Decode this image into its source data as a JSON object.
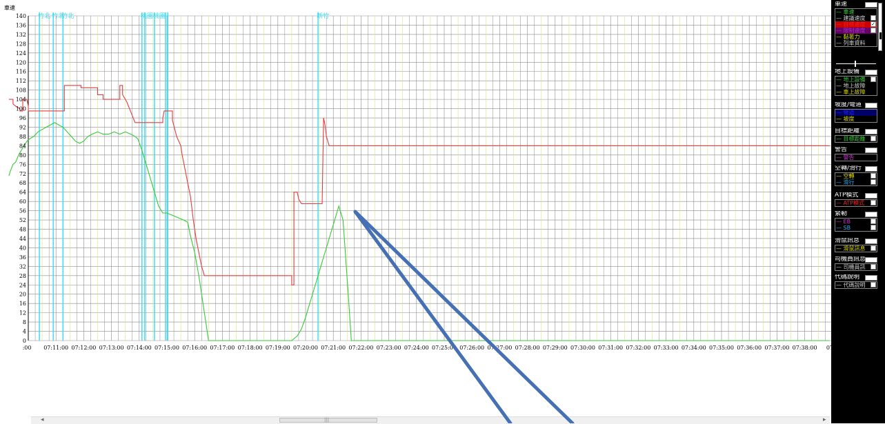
{
  "chart_data": {
    "type": "line",
    "ylabel": "車速",
    "y_ticks": [
      0,
      4,
      8,
      12,
      16,
      20,
      24,
      28,
      32,
      36,
      40,
      44,
      48,
      52,
      56,
      60,
      64,
      68,
      72,
      76,
      80,
      84,
      88,
      92,
      96,
      100,
      104,
      108,
      112,
      116,
      120,
      124,
      128,
      132,
      136,
      140
    ],
    "x_tick_labels": [
      ":00",
      "07:11:00",
      "07:12:00",
      "07:13:00",
      "07:14:00",
      "07:15:00",
      "07:16:00",
      "07:17:00",
      "07:18:00",
      "07:19:00",
      "07:20:00",
      "07:21:00",
      "07:22:00",
      "07:23:00",
      "07:24:00",
      "07:25:00",
      "07:26:00",
      "07:27:00",
      "07:28:00",
      "07:29:00",
      "07:30:00",
      "07:31:00",
      "07:32:00",
      "07:33:00",
      "07:34:00",
      "07:35:00",
      "07:36:00",
      "07:37:00",
      "07:38:00",
      "07:3"
    ],
    "station_markers": [
      {
        "label": "竹北",
        "t": 0.4
      },
      {
        "label": "竹北",
        "t": 0.9
      },
      {
        "label": "竹北",
        "t": 1.25
      },
      {
        "label": "桃園",
        "t": 4.1
      },
      {
        "label": "",
        "t": 4.2
      },
      {
        "label": "桃園",
        "t": 4.55
      },
      {
        "label": "",
        "t": 4.95
      },
      {
        "label": "",
        "t": 5.03
      },
      {
        "label": "新竹",
        "t": 10.45
      }
    ],
    "series": [
      {
        "name": "車速",
        "color": "#33cc33",
        "points": [
          [
            -0.7,
            71
          ],
          [
            -0.65,
            73
          ],
          [
            -0.55,
            76
          ],
          [
            -0.45,
            77
          ],
          [
            -0.35,
            80
          ],
          [
            -0.25,
            82
          ],
          [
            -0.15,
            84
          ],
          [
            -0.05,
            86
          ],
          [
            0.05,
            87
          ],
          [
            0.2,
            88
          ],
          [
            0.35,
            90
          ],
          [
            0.5,
            91
          ],
          [
            0.65,
            92
          ],
          [
            0.8,
            93
          ],
          [
            0.95,
            94
          ],
          [
            1.1,
            93
          ],
          [
            1.25,
            92
          ],
          [
            1.4,
            90
          ],
          [
            1.55,
            88
          ],
          [
            1.7,
            86
          ],
          [
            1.85,
            85
          ],
          [
            2.0,
            86
          ],
          [
            2.15,
            88
          ],
          [
            2.3,
            89
          ],
          [
            2.5,
            90
          ],
          [
            2.7,
            89
          ],
          [
            2.9,
            89
          ],
          [
            3.1,
            90
          ],
          [
            3.3,
            89
          ],
          [
            3.5,
            90
          ],
          [
            3.7,
            89
          ],
          [
            3.85,
            88
          ],
          [
            3.95,
            87
          ],
          [
            4.1,
            82
          ],
          [
            4.25,
            76
          ],
          [
            4.4,
            70
          ],
          [
            4.55,
            64
          ],
          [
            4.7,
            58
          ],
          [
            4.85,
            55
          ],
          [
            5.0,
            55
          ],
          [
            5.2,
            54
          ],
          [
            5.4,
            53
          ],
          [
            5.6,
            52
          ],
          [
            5.75,
            51
          ],
          [
            5.85,
            45
          ],
          [
            6.0,
            38
          ],
          [
            6.15,
            28
          ],
          [
            6.3,
            16
          ],
          [
            6.4,
            8
          ],
          [
            6.5,
            0
          ],
          [
            7.0,
            0
          ],
          [
            8.0,
            0
          ],
          [
            9.0,
            0
          ],
          [
            9.5,
            0
          ],
          [
            9.7,
            2
          ],
          [
            9.85,
            5
          ],
          [
            10.0,
            10
          ],
          [
            10.15,
            16
          ],
          [
            10.3,
            22
          ],
          [
            10.45,
            28
          ],
          [
            10.6,
            34
          ],
          [
            10.75,
            40
          ],
          [
            10.9,
            46
          ],
          [
            11.05,
            52
          ],
          [
            11.2,
            58
          ],
          [
            11.35,
            52
          ],
          [
            11.45,
            35
          ],
          [
            11.55,
            18
          ],
          [
            11.65,
            0
          ],
          [
            12.0,
            0
          ],
          [
            14.0,
            0
          ],
          [
            16.0,
            0
          ],
          [
            18.0,
            0
          ],
          [
            20.0,
            0
          ],
          [
            22.0,
            0
          ],
          [
            24.0,
            0
          ],
          [
            26.0,
            0
          ],
          [
            28.0,
            0
          ],
          [
            28.9,
            0
          ]
        ]
      },
      {
        "name": "目標速度",
        "color": "#e83a3a",
        "points": [
          [
            -0.7,
            104
          ],
          [
            -0.55,
            104
          ],
          [
            -0.55,
            102
          ],
          [
            -0.45,
            101
          ],
          [
            -0.3,
            100
          ],
          [
            -0.3,
            99
          ],
          [
            -0.2,
            99
          ],
          [
            -0.2,
            104
          ],
          [
            -0.05,
            104
          ],
          [
            0.0,
            101
          ],
          [
            0.0,
            99
          ],
          [
            1.2,
            99
          ],
          [
            1.2,
            99
          ],
          [
            1.3,
            99
          ],
          [
            1.3,
            110
          ],
          [
            1.9,
            110
          ],
          [
            1.9,
            109
          ],
          [
            2.5,
            109
          ],
          [
            2.5,
            106
          ],
          [
            2.7,
            106
          ],
          [
            2.7,
            104
          ],
          [
            3.3,
            104
          ],
          [
            3.3,
            110
          ],
          [
            3.4,
            110
          ],
          [
            3.4,
            106
          ],
          [
            3.55,
            103
          ],
          [
            3.65,
            100
          ],
          [
            3.75,
            97
          ],
          [
            3.85,
            94
          ],
          [
            4.85,
            94
          ],
          [
            4.85,
            96
          ],
          [
            4.9,
            99
          ],
          [
            5.2,
            99
          ],
          [
            5.2,
            95
          ],
          [
            5.35,
            88
          ],
          [
            5.5,
            84
          ],
          [
            5.55,
            80
          ],
          [
            5.65,
            74
          ],
          [
            5.75,
            68
          ],
          [
            5.85,
            62
          ],
          [
            5.95,
            52
          ],
          [
            6.05,
            44
          ],
          [
            6.15,
            38
          ],
          [
            6.25,
            32
          ],
          [
            6.35,
            28
          ],
          [
            9.5,
            28
          ],
          [
            9.5,
            24
          ],
          [
            9.58,
            24
          ],
          [
            9.58,
            64
          ],
          [
            9.7,
            64
          ],
          [
            9.75,
            61
          ],
          [
            9.85,
            59
          ],
          [
            10.6,
            59
          ],
          [
            10.6,
            60
          ],
          [
            10.65,
            96
          ],
          [
            10.7,
            93
          ],
          [
            10.75,
            88
          ],
          [
            10.85,
            84
          ],
          [
            28.9,
            84
          ]
        ]
      }
    ]
  },
  "scrollbar": {
    "left_arrow": "◂",
    "right_arrow": "▸",
    "thumb_grip": "|||"
  },
  "panel": {
    "groups": [
      {
        "title": "車速",
        "items": [
          {
            "label": "車速",
            "color": "#33cc33"
          },
          {
            "label": "建議速度",
            "color": "#cccccc",
            "box": true
          },
          {
            "label": "目標速度",
            "color": "#ee2222",
            "box": true,
            "checked": true,
            "highlight": "#cc0000"
          },
          {
            "label": "限制速度",
            "color": "#aa33cc",
            "box": true,
            "highlight": "#660066"
          },
          {
            "label": "黏著力",
            "color": "#dddd00"
          },
          {
            "label": "列車資料",
            "color": "#cccccc"
          }
        ]
      },
      {
        "title": "地上設備",
        "items": [
          {
            "label": "地上設備",
            "color": "#33cc33",
            "box": true
          },
          {
            "label": "地上故障",
            "color": "#cccccc"
          },
          {
            "label": "車上故障",
            "color": "#dddd00"
          }
        ]
      },
      {
        "title": "坡度/彎道",
        "items": [
          {
            "label": "彎道",
            "color": "#2222ee",
            "highlight": "#000066"
          },
          {
            "label": "坡度",
            "color": "#dddd00"
          }
        ]
      },
      {
        "title": "目標距離",
        "items": [
          {
            "label": "目標距離",
            "color": "#33cc33",
            "box": true
          }
        ]
      },
      {
        "title": "警告",
        "items": [
          {
            "label": "警告",
            "color": "#cc33cc"
          }
        ]
      },
      {
        "title": "空轉/滑行",
        "items": [
          {
            "label": "空轉",
            "color": "#dddd00",
            "box": true
          },
          {
            "label": "滑行",
            "color": "#22aaee",
            "box": true
          }
        ]
      },
      {
        "title": "ATP模式",
        "items": [
          {
            "label": "ATP模式",
            "color": "#ee2222",
            "box": true
          }
        ]
      },
      {
        "title": "緊軔",
        "items": [
          {
            "label": "EB",
            "color": "#cc33cc",
            "box": true
          },
          {
            "label": "SB",
            "color": "#22aaee",
            "box": true
          }
        ]
      },
      {
        "title": "滑鼠訊息",
        "items": [
          {
            "label": "滑鼠訊息",
            "color": "#dddd00",
            "box": true
          }
        ]
      },
      {
        "title": "司機員訊息",
        "items": [
          {
            "label": "司機員訊",
            "color": "#cccccc",
            "box": true
          }
        ]
      },
      {
        "title": "代碼說明",
        "items": [
          {
            "label": "代碼說明",
            "color": "#cccccc",
            "box": true
          }
        ]
      }
    ]
  },
  "colors": {
    "grid": "#8a8a8a",
    "minor_grid": "#d4e06a",
    "station": "#33ddee",
    "arrow": "#4670b4"
  }
}
